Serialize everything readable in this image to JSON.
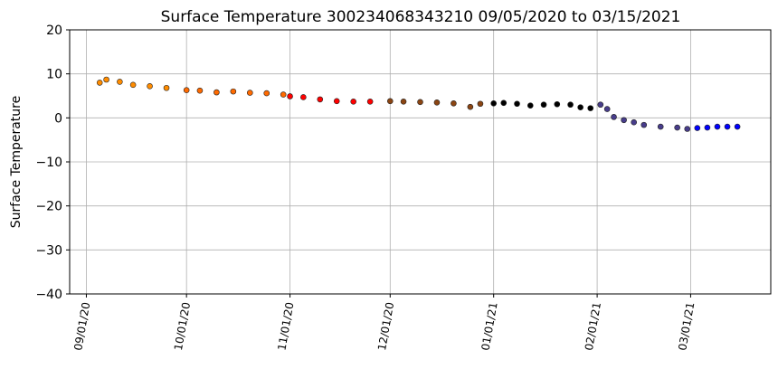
{
  "chart_data": {
    "type": "scatter",
    "title": "Surface Temperature 300234068343210  09/05/2020 to 03/15/2021",
    "ylabel": "Surface Temperature",
    "x": [
      "2020-09-05",
      "2020-09-07",
      "2020-09-11",
      "2020-09-15",
      "2020-09-20",
      "2020-09-25",
      "2020-10-01",
      "2020-10-05",
      "2020-10-10",
      "2020-10-15",
      "2020-10-20",
      "2020-10-25",
      "2020-10-30",
      "2020-11-01",
      "2020-11-05",
      "2020-11-10",
      "2020-11-15",
      "2020-11-20",
      "2020-11-25",
      "2020-12-01",
      "2020-12-05",
      "2020-12-10",
      "2020-12-15",
      "2020-12-20",
      "2020-12-25",
      "2020-12-28",
      "2021-01-01",
      "2021-01-04",
      "2021-01-08",
      "2021-01-12",
      "2021-01-16",
      "2021-01-20",
      "2021-01-24",
      "2021-01-27",
      "2021-01-30",
      "2021-02-02",
      "2021-02-04",
      "2021-02-06",
      "2021-02-09",
      "2021-02-12",
      "2021-02-15",
      "2021-02-20",
      "2021-02-25",
      "2021-02-28",
      "2021-03-03",
      "2021-03-06",
      "2021-03-09",
      "2021-03-12",
      "2021-03-15"
    ],
    "values": [
      8.0,
      8.7,
      8.2,
      7.5,
      7.2,
      6.8,
      6.3,
      6.2,
      5.8,
      6.0,
      5.7,
      5.6,
      5.3,
      4.9,
      4.7,
      4.2,
      3.8,
      3.7,
      3.7,
      3.8,
      3.7,
      3.6,
      3.5,
      3.3,
      2.5,
      3.2,
      3.3,
      3.4,
      3.2,
      2.8,
      3.0,
      3.1,
      3.0,
      2.4,
      2.2,
      3.0,
      2.0,
      0.2,
      -0.5,
      -1.0,
      -1.6,
      -2.0,
      -2.2,
      -2.5,
      -2.3,
      -2.2,
      -2.0,
      -2.0,
      -2.0
    ],
    "colors": [
      "#ff8c00",
      "#ff8c00",
      "#ff8c00",
      "#ff8c00",
      "#ff8c00",
      "#ff8c00",
      "#ff6a00",
      "#ff6a00",
      "#ff6a00",
      "#ff6a00",
      "#ff6a00",
      "#ff6a00",
      "#ff6a00",
      "#ff0000",
      "#ff0000",
      "#ff0000",
      "#ff0000",
      "#ff0000",
      "#ff0000",
      "#8b4513",
      "#8b4513",
      "#8b4513",
      "#8b4513",
      "#8b4513",
      "#8b4513",
      "#8b4513",
      "#000000",
      "#000000",
      "#000000",
      "#000000",
      "#000000",
      "#000000",
      "#000000",
      "#000000",
      "#000000",
      "#483d8b",
      "#483d8b",
      "#483d8b",
      "#483d8b",
      "#483d8b",
      "#483d8b",
      "#483d8b",
      "#483d8b",
      "#483d8b",
      "#0000ff",
      "#0000ff",
      "#0000ff",
      "#0000ff",
      "#0000ff"
    ],
    "xlim": [
      "2020-08-27",
      "2021-03-25"
    ],
    "xticks": [
      {
        "value": "2020-09-01",
        "label": "09/01/20"
      },
      {
        "value": "2020-10-01",
        "label": "10/01/20"
      },
      {
        "value": "2020-11-01",
        "label": "11/01/20"
      },
      {
        "value": "2020-12-01",
        "label": "12/01/20"
      },
      {
        "value": "2021-01-01",
        "label": "01/01/21"
      },
      {
        "value": "2021-02-01",
        "label": "02/01/21"
      },
      {
        "value": "2021-03-01",
        "label": "03/01/21"
      }
    ],
    "ylim": [
      -40,
      20
    ],
    "yticks": [
      {
        "value": -40,
        "label": "−40"
      },
      {
        "value": -30,
        "label": "−30"
      },
      {
        "value": -20,
        "label": "−20"
      },
      {
        "value": -10,
        "label": "−10"
      },
      0,
      10,
      20
    ],
    "grid": true
  }
}
